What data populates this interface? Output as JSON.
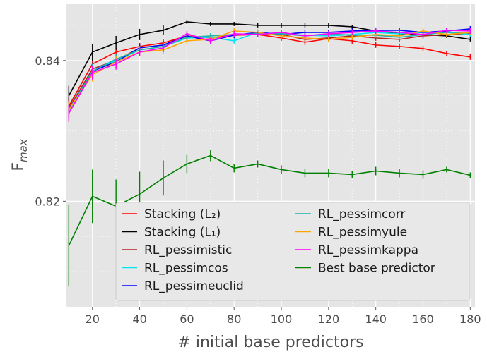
{
  "chart_data": {
    "type": "line",
    "title": "",
    "xlabel": "# initial base predictors",
    "ylabel_main": "F",
    "ylabel_sub": "max",
    "xlim": [
      9,
      182
    ],
    "ylim": [
      0.805,
      0.848
    ],
    "xticks": [
      20,
      40,
      60,
      80,
      100,
      120,
      140,
      160,
      180
    ],
    "yticks": [
      0.82,
      0.84
    ],
    "ytick_labels": [
      "0.82",
      "0.84"
    ],
    "grid": true,
    "legend_position": "lower-right",
    "x": [
      10,
      20,
      30,
      40,
      50,
      60,
      70,
      80,
      90,
      100,
      110,
      120,
      130,
      140,
      150,
      160,
      170,
      180
    ],
    "series": [
      {
        "name": "Stacking (L₂)",
        "color": "#ff0000",
        "values": [
          0.8335,
          0.8395,
          0.8412,
          0.842,
          0.8425,
          0.8435,
          0.8432,
          0.8436,
          0.8437,
          0.8432,
          0.8426,
          0.8431,
          0.8428,
          0.8422,
          0.842,
          0.8417,
          0.841,
          0.8405
        ],
        "errors": [
          0.0012,
          0.0008,
          0.0006,
          0.0005,
          0.0005,
          0.0004,
          0.0004,
          0.0004,
          0.0004,
          0.0004,
          0.0004,
          0.0004,
          0.0004,
          0.0004,
          0.0004,
          0.0004,
          0.0004,
          0.0004
        ]
      },
      {
        "name": "Stacking (L₁)",
        "color": "#000000",
        "values": [
          0.835,
          0.8412,
          0.8425,
          0.8437,
          0.8443,
          0.8455,
          0.8452,
          0.8452,
          0.845,
          0.845,
          0.845,
          0.845,
          0.8448,
          0.8442,
          0.8438,
          0.8437,
          0.8435,
          0.843
        ],
        "errors": [
          0.0014,
          0.0012,
          0.001,
          0.0008,
          0.0007,
          0.0003,
          0.0003,
          0.0003,
          0.0003,
          0.0003,
          0.0003,
          0.0003,
          0.0003,
          0.0003,
          0.0003,
          0.0003,
          0.0003,
          0.0003
        ]
      },
      {
        "name": "RL_pessimistic",
        "color": "#b22222",
        "values": [
          0.8332,
          0.8388,
          0.84,
          0.8418,
          0.8422,
          0.8435,
          0.8428,
          0.8437,
          0.8437,
          0.8437,
          0.843,
          0.8432,
          0.8435,
          0.8432,
          0.843,
          0.8435,
          0.8437,
          0.8438
        ],
        "errors": [
          0.0012,
          0.001,
          0.0008,
          0.0006,
          0.0006,
          0.0004,
          0.0004,
          0.0004,
          0.0004,
          0.0004,
          0.0004,
          0.0004,
          0.0004,
          0.0004,
          0.0004,
          0.0004,
          0.0004,
          0.0004
        ]
      },
      {
        "name": "RL_pessimcos",
        "color": "#00e5ee",
        "values": [
          0.8328,
          0.8385,
          0.84,
          0.8415,
          0.842,
          0.8432,
          0.8433,
          0.8428,
          0.844,
          0.8438,
          0.8436,
          0.8435,
          0.8437,
          0.844,
          0.8438,
          0.844,
          0.844,
          0.8437
        ],
        "errors": [
          0.0012,
          0.001,
          0.0008,
          0.0006,
          0.0006,
          0.0004,
          0.0004,
          0.0004,
          0.0004,
          0.0004,
          0.0004,
          0.0004,
          0.0004,
          0.0004,
          0.0004,
          0.0004,
          0.0004,
          0.0004
        ]
      },
      {
        "name": "RL_pessimeuclid",
        "color": "#0000ff",
        "values": [
          0.833,
          0.8385,
          0.8398,
          0.8418,
          0.8422,
          0.8435,
          0.8428,
          0.8436,
          0.844,
          0.8437,
          0.844,
          0.844,
          0.8442,
          0.8443,
          0.8443,
          0.844,
          0.8442,
          0.8445
        ],
        "errors": [
          0.0012,
          0.001,
          0.0008,
          0.0006,
          0.0006,
          0.0004,
          0.0004,
          0.0004,
          0.0004,
          0.0004,
          0.0004,
          0.0004,
          0.0004,
          0.0004,
          0.0004,
          0.0004,
          0.0004,
          0.0004
        ]
      },
      {
        "name": "RL_pessimcorr",
        "color": "#20b2aa",
        "values": [
          0.833,
          0.8385,
          0.8402,
          0.8415,
          0.842,
          0.8433,
          0.8435,
          0.8437,
          0.8438,
          0.8438,
          0.8435,
          0.8438,
          0.8436,
          0.8436,
          0.8433,
          0.8437,
          0.844,
          0.844
        ],
        "errors": [
          0.0012,
          0.001,
          0.0008,
          0.0006,
          0.0006,
          0.0004,
          0.0004,
          0.0004,
          0.0004,
          0.0004,
          0.0004,
          0.0004,
          0.0004,
          0.0004,
          0.0004,
          0.0004,
          0.0004,
          0.0004
        ]
      },
      {
        "name": "RL_pessimyule",
        "color": "#ffa500",
        "values": [
          0.833,
          0.838,
          0.8398,
          0.8412,
          0.8415,
          0.8428,
          0.843,
          0.8442,
          0.844,
          0.8435,
          0.8432,
          0.843,
          0.8433,
          0.8437,
          0.8435,
          0.8442,
          0.8437,
          0.844
        ],
        "errors": [
          0.0012,
          0.001,
          0.0008,
          0.0006,
          0.0006,
          0.0004,
          0.0004,
          0.0004,
          0.0004,
          0.0004,
          0.0004,
          0.0004,
          0.0004,
          0.0004,
          0.0004,
          0.0004,
          0.0004,
          0.0004
        ]
      },
      {
        "name": "RL_pessimkappa",
        "color": "#ff00ff",
        "values": [
          0.8325,
          0.8383,
          0.8395,
          0.8412,
          0.8418,
          0.8438,
          0.8428,
          0.8438,
          0.8437,
          0.844,
          0.8435,
          0.8438,
          0.844,
          0.8442,
          0.844,
          0.8437,
          0.8443,
          0.8442
        ],
        "errors": [
          0.0012,
          0.001,
          0.0008,
          0.0006,
          0.0006,
          0.0004,
          0.0004,
          0.0004,
          0.0004,
          0.0004,
          0.0004,
          0.0004,
          0.0004,
          0.0004,
          0.0004,
          0.0004,
          0.0004,
          0.0004
        ]
      },
      {
        "name": "Best base predictor",
        "color": "#008000",
        "values": [
          0.8137,
          0.8207,
          0.8193,
          0.821,
          0.8233,
          0.8253,
          0.8265,
          0.8247,
          0.8253,
          0.8245,
          0.824,
          0.824,
          0.8238,
          0.8243,
          0.824,
          0.8238,
          0.8245,
          0.8237
        ],
        "errors": [
          0.0058,
          0.0038,
          0.0038,
          0.0032,
          0.0025,
          0.0013,
          0.0008,
          0.0006,
          0.0005,
          0.0006,
          0.0006,
          0.0006,
          0.0005,
          0.0006,
          0.0006,
          0.0006,
          0.0004,
          0.0004
        ]
      }
    ]
  }
}
